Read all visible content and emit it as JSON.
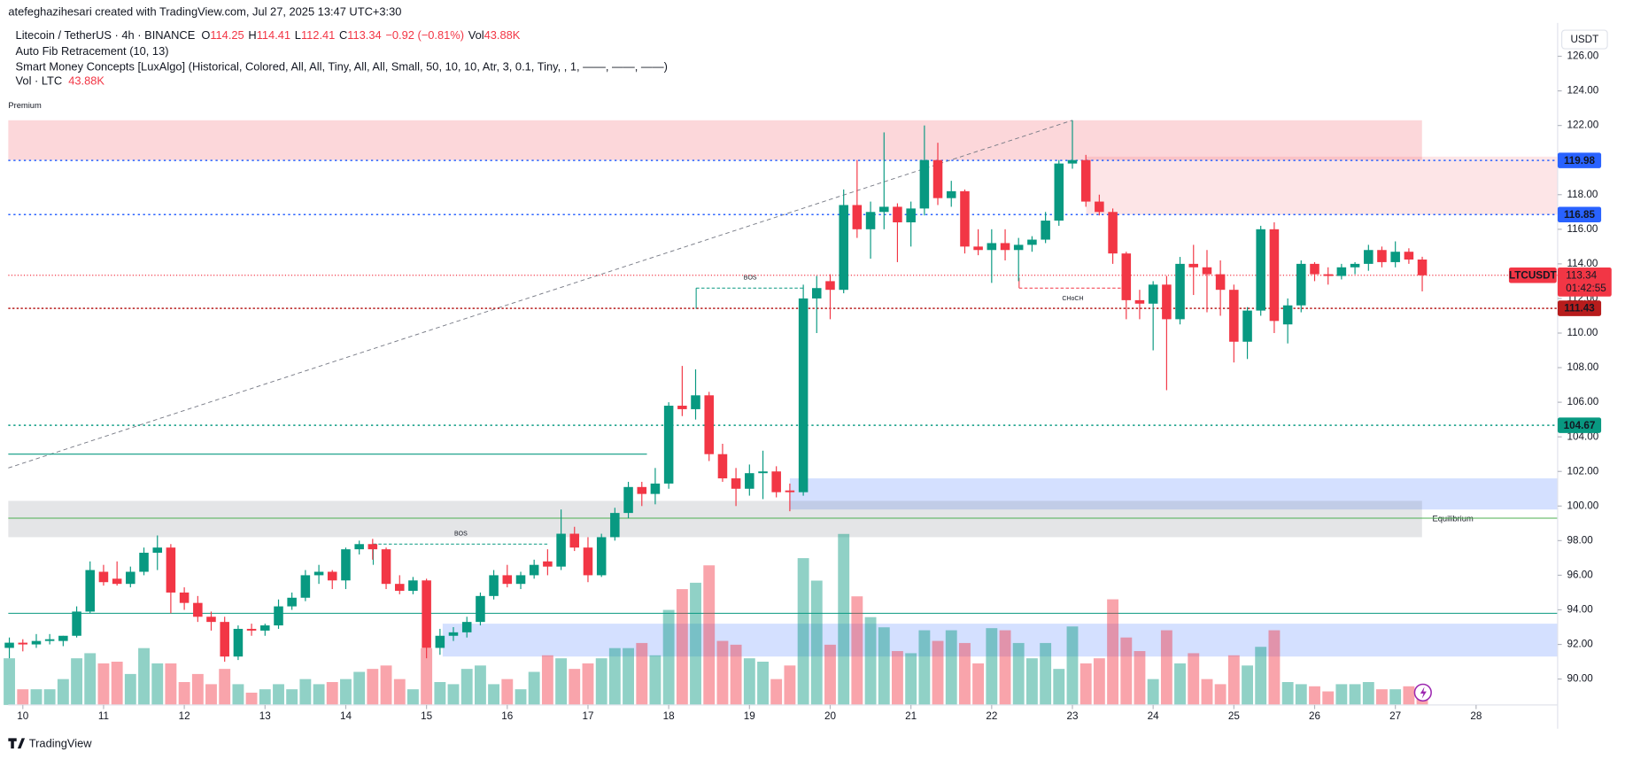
{
  "chart_data": {
    "type": "candlestick",
    "credit": "atefeghazihesari created with TradingView.com, Jul 27, 2025 13:47 UTC+3:30",
    "symbol": "Litecoin / TetherUS · 4h · BINANCE",
    "ohlc_letters": [
      "O",
      "H",
      "L",
      "C"
    ],
    "change": "−0.92 (−0.81%)",
    "vol_letters": "Vol",
    "vol_text": "43.88K",
    "indicators": [
      "Auto Fib Retracement (10, 13)",
      "Smart Money Concepts [LuxAlgo] (Historical, Colored, All, All, Tiny, All, All, Small, 50, 10, 10, Atr, 3, 0.1, Tiny, , 1, ——, ——, ——)"
    ],
    "vol_name": "Vol · LTC",
    "currency": "USDT",
    "symbol_tag": "LTCUSDT",
    "countdown": "01:42:55",
    "brand": "TradingView",
    "up_color": "#089981",
    "down_color": "#f23645",
    "volume_colors": [
      "rgba(8,153,129,0.45)",
      "rgba(242,54,69,0.45)"
    ],
    "xlim": [
      9.82,
      29.01
    ],
    "xticks": [
      10,
      11,
      12,
      13,
      14,
      15,
      16,
      17,
      18,
      19,
      20,
      21,
      22,
      23,
      24,
      25,
      26,
      27,
      28
    ],
    "ylim": [
      88.5,
      127.93
    ],
    "yticks": [
      {
        "value": 90,
        "label": "90.00"
      },
      {
        "value": 92,
        "label": "92.00"
      },
      {
        "value": 94,
        "label": "94.00"
      },
      {
        "value": 96,
        "label": "96.00"
      },
      {
        "value": 98,
        "label": "98.00"
      },
      {
        "value": 100,
        "label": "100.00"
      },
      {
        "value": 102,
        "label": "102.00"
      },
      {
        "value": 104,
        "label": "104.00"
      },
      {
        "value": 106,
        "label": "106.00"
      },
      {
        "value": 108,
        "label": "108.00"
      },
      {
        "value": 110,
        "label": "110.00"
      },
      {
        "value": 112,
        "label": "112.00"
      },
      {
        "value": 114,
        "label": "114.00"
      },
      {
        "value": 116,
        "label": "116.00"
      },
      {
        "value": 118,
        "label": "118.00"
      },
      {
        "value": 120,
        "label": "120.00"
      },
      {
        "value": 122,
        "label": "122.00"
      },
      {
        "value": 124,
        "label": "124.00"
      },
      {
        "value": 126,
        "label": "126.00"
      }
    ],
    "x": [
      9.833,
      10,
      10.167,
      10.333,
      10.5,
      10.667,
      10.833,
      11,
      11.167,
      11.333,
      11.5,
      11.667,
      11.833,
      12,
      12.167,
      12.333,
      12.5,
      12.667,
      12.833,
      13,
      13.167,
      13.333,
      13.5,
      13.667,
      13.833,
      14,
      14.167,
      14.333,
      14.5,
      14.667,
      14.833,
      15,
      15.167,
      15.333,
      15.5,
      15.667,
      15.833,
      16,
      16.167,
      16.333,
      16.5,
      16.667,
      16.833,
      17,
      17.167,
      17.333,
      17.5,
      17.667,
      17.833,
      18,
      18.167,
      18.333,
      18.5,
      18.667,
      18.833,
      19,
      19.167,
      19.333,
      19.5,
      19.667,
      19.833,
      20,
      20.167,
      20.333,
      20.5,
      20.667,
      20.833,
      21,
      21.167,
      21.333,
      21.5,
      21.667,
      21.833,
      22,
      22.167,
      22.333,
      22.5,
      22.667,
      22.833,
      23,
      23.167,
      23.333,
      23.5,
      23.667,
      23.833,
      24,
      24.167,
      24.333,
      24.5,
      24.667,
      24.833,
      25,
      25.167,
      25.333,
      25.5,
      25.667,
      25.833,
      26,
      26.167,
      26.333,
      26.5,
      26.667,
      26.833,
      27,
      27.167,
      27.333
    ],
    "open": [
      91.8,
      92.1,
      92.0,
      92.2,
      92.2,
      92.5,
      93.9,
      96.2,
      95.8,
      95.5,
      96.2,
      97.3,
      97.6,
      95.0,
      94.4,
      93.6,
      93.3,
      91.3,
      92.9,
      92.8,
      93.1,
      94.2,
      94.7,
      96.0,
      96.2,
      95.7,
      97.5,
      97.8,
      97.5,
      95.5,
      95.1,
      95.7,
      91.8,
      92.5,
      92.7,
      93.3,
      94.8,
      96.0,
      95.5,
      96.0,
      96.8,
      96.5,
      98.4,
      97.6,
      96.0,
      98.2,
      99.6,
      101.1,
      100.7,
      101.3,
      105.8,
      105.6,
      106.4,
      103.0,
      101.6,
      101.0,
      101.9,
      102.0,
      100.9,
      100.8,
      112.0,
      113.0,
      112.5,
      117.4,
      116.0,
      117.0,
      117.3,
      116.4,
      117.2,
      120.0,
      117.8,
      118.2,
      115.0,
      114.8,
      115.2,
      114.8,
      115.1,
      115.4,
      116.5,
      119.8,
      120.0,
      117.6,
      117.0,
      114.6,
      111.9,
      111.7,
      112.8,
      110.8,
      114.0,
      113.8,
      113.4,
      112.5,
      109.5,
      111.3,
      116.0,
      110.5,
      111.6,
      114.0,
      113.4,
      113.3,
      113.8,
      114.0,
      114.8,
      114.1,
      114.7,
      114.25
    ],
    "high": [
      92.4,
      92.3,
      92.6,
      92.6,
      92.5,
      94.2,
      96.8,
      96.6,
      96.8,
      96.5,
      97.6,
      98.3,
      97.8,
      95.3,
      94.8,
      93.9,
      93.6,
      93.1,
      93.2,
      93.2,
      94.6,
      95.0,
      96.3,
      96.6,
      96.3,
      97.6,
      98.0,
      98.1,
      97.6,
      96.0,
      95.9,
      95.8,
      92.9,
      93.0,
      93.6,
      95.0,
      96.3,
      96.6,
      96.2,
      96.9,
      97.5,
      99.8,
      98.8,
      98.2,
      98.4,
      99.9,
      101.4,
      101.4,
      102.2,
      106.0,
      108.1,
      107.9,
      106.6,
      103.6,
      102.2,
      102.4,
      103.2,
      102.3,
      101.3,
      112.8,
      113.3,
      113.4,
      118.3,
      120.0,
      117.6,
      121.6,
      117.5,
      117.6,
      122.0,
      121.0,
      118.8,
      118.3,
      116.0,
      116.0,
      116.0,
      115.5,
      115.6,
      117.0,
      120.0,
      122.3,
      120.3,
      118.0,
      117.2,
      114.7,
      112.5,
      113.0,
      113.3,
      114.4,
      115.1,
      114.8,
      114.2,
      112.8,
      111.5,
      116.2,
      116.4,
      112.0,
      114.2,
      114.1,
      113.8,
      114.0,
      114.1,
      115.1,
      115.0,
      115.3,
      114.9,
      114.41
    ],
    "low": [
      91.2,
      91.6,
      91.8,
      92.0,
      91.9,
      92.4,
      93.8,
      95.4,
      95.4,
      95.3,
      96.0,
      96.3,
      93.8,
      94.0,
      93.3,
      92.8,
      91.0,
      91.1,
      92.5,
      92.5,
      92.9,
      94.0,
      94.5,
      95.5,
      95.2,
      95.2,
      97.2,
      96.9,
      95.2,
      94.9,
      94.9,
      91.2,
      91.4,
      92.2,
      92.4,
      93.1,
      94.6,
      95.3,
      95.2,
      95.8,
      96.0,
      96.3,
      97.4,
      95.6,
      95.9,
      98.0,
      99.3,
      100.0,
      100.1,
      101.0,
      105.2,
      105.0,
      102.6,
      101.4,
      100.0,
      100.6,
      100.4,
      100.5,
      99.7,
      100.6,
      110.0,
      110.8,
      112.3,
      115.5,
      114.3,
      116.0,
      114.1,
      115.0,
      116.8,
      117.4,
      117.3,
      114.6,
      114.5,
      112.9,
      114.2,
      113.0,
      114.7,
      115.2,
      116.2,
      119.5,
      117.3,
      116.8,
      114.0,
      110.8,
      110.8,
      109.0,
      106.7,
      110.5,
      112.2,
      111.2,
      111.0,
      108.3,
      108.5,
      111.0,
      110.0,
      109.4,
      111.2,
      113.0,
      112.8,
      113.1,
      113.4,
      113.6,
      113.8,
      113.8,
      114.0,
      112.41
    ],
    "close": [
      92.1,
      92.0,
      92.2,
      92.3,
      92.5,
      93.9,
      96.3,
      95.6,
      95.5,
      96.2,
      97.3,
      97.6,
      95.0,
      94.4,
      93.6,
      93.3,
      91.3,
      92.9,
      92.8,
      93.1,
      94.2,
      94.7,
      96.0,
      96.2,
      95.7,
      97.5,
      97.8,
      97.5,
      95.5,
      95.1,
      95.7,
      91.8,
      92.5,
      92.7,
      93.3,
      94.8,
      96.0,
      95.5,
      96.0,
      96.6,
      96.5,
      98.4,
      97.6,
      96.0,
      98.2,
      99.6,
      101.1,
      100.7,
      101.3,
      105.8,
      105.6,
      106.4,
      103.0,
      101.6,
      101.0,
      101.9,
      102.0,
      100.8,
      100.8,
      112.0,
      112.6,
      112.5,
      117.4,
      116.0,
      117.0,
      117.3,
      116.4,
      117.2,
      120.0,
      117.8,
      118.2,
      115.0,
      114.8,
      115.2,
      114.8,
      115.1,
      115.4,
      116.5,
      119.8,
      120.0,
      117.6,
      117.0,
      114.6,
      111.9,
      111.7,
      112.8,
      110.8,
      114.0,
      113.8,
      113.4,
      112.5,
      109.5,
      111.3,
      116.0,
      110.7,
      111.6,
      114.0,
      113.4,
      113.3,
      113.8,
      114.0,
      114.8,
      114.1,
      114.7,
      114.25,
      113.34
    ],
    "volume": [
      110,
      37,
      37,
      37,
      61,
      110,
      122,
      98,
      102,
      73,
      134,
      98,
      98,
      54,
      73,
      49,
      85,
      49,
      29,
      37,
      49,
      37,
      61,
      49,
      54,
      61,
      78,
      85,
      93,
      61,
      37,
      134,
      54,
      49,
      85,
      93,
      49,
      61,
      37,
      78,
      117,
      110,
      85,
      98,
      110,
      134,
      134,
      146,
      117,
      224,
      273,
      288,
      329,
      151,
      142,
      110,
      102,
      61,
      93,
      346,
      293,
      142,
      403,
      256,
      207,
      183,
      127,
      122,
      176,
      151,
      176,
      146,
      98,
      181,
      176,
      146,
      110,
      146,
      85,
      185,
      98,
      110,
      249,
      159,
      127,
      61,
      176,
      98,
      122,
      61,
      49,
      117,
      93,
      137,
      176,
      54,
      49,
      44,
      32,
      49,
      49,
      54,
      37,
      37,
      44,
      43.88
    ],
    "levels": [
      {
        "value": 119.98,
        "color": "#2962ff",
        "dash": "2 3",
        "tag": true
      },
      {
        "value": 116.85,
        "color": "#2962ff",
        "dash": "2 3",
        "tag": true
      },
      {
        "value": 111.43,
        "color": "#b71c1c",
        "dash": "2 2",
        "tag": true
      },
      {
        "value": 104.67,
        "color": "#089981",
        "dash": "2 3",
        "tag": true
      },
      {
        "value": 103.0,
        "color": "#089981",
        "dash": "",
        "end": 17.73,
        "tag": false
      },
      {
        "value": 99.3,
        "color": "#4caf50",
        "dash": "",
        "tag": false
      },
      {
        "value": 93.8,
        "color": "#089981",
        "dash": "",
        "tag": false
      }
    ],
    "tag_colors": {
      "119.98": "#2962ff"
    },
    "zones": [
      {
        "top": 122.3,
        "bottom": 120.0,
        "x_start": 9.82,
        "x_end": 27.33,
        "color": "rgba(242,54,69,0.2)",
        "label": "Premium"
      },
      {
        "top": 120.2,
        "bottom": 116.85,
        "x_start": 23.17,
        "x_end": 29.01,
        "color": "rgba(242,54,69,0.13)"
      },
      {
        "top": 101.6,
        "bottom": 99.8,
        "x_start": 19.5,
        "x_end": 29.01,
        "color": "rgba(41,98,255,0.2)"
      },
      {
        "top": 100.3,
        "bottom": 98.2,
        "x_start": 9.82,
        "x_end": 27.33,
        "color": "rgba(120,123,134,0.2)",
        "label": "Equilibrium"
      },
      {
        "top": 93.2,
        "bottom": 91.3,
        "x_start": 15.2,
        "x_end": 29.01,
        "color": "rgba(41,98,255,0.2)"
      }
    ],
    "structures": [
      {
        "label": "BOS",
        "price": 112.6,
        "from": 18.34,
        "to": 19.68,
        "color": "#089981"
      },
      {
        "label": "BOS",
        "price": 97.8,
        "from": 14.34,
        "to": 16.51,
        "color": "#089981"
      },
      {
        "label": "CHoCH",
        "price": 112.6,
        "from": 22.34,
        "to": 23.67,
        "color": "#f23645"
      }
    ],
    "fib_line": {
      "x": [
        9.82,
        23.0
      ],
      "y": [
        102.2,
        122.3
      ],
      "color": "#787b86"
    }
  }
}
